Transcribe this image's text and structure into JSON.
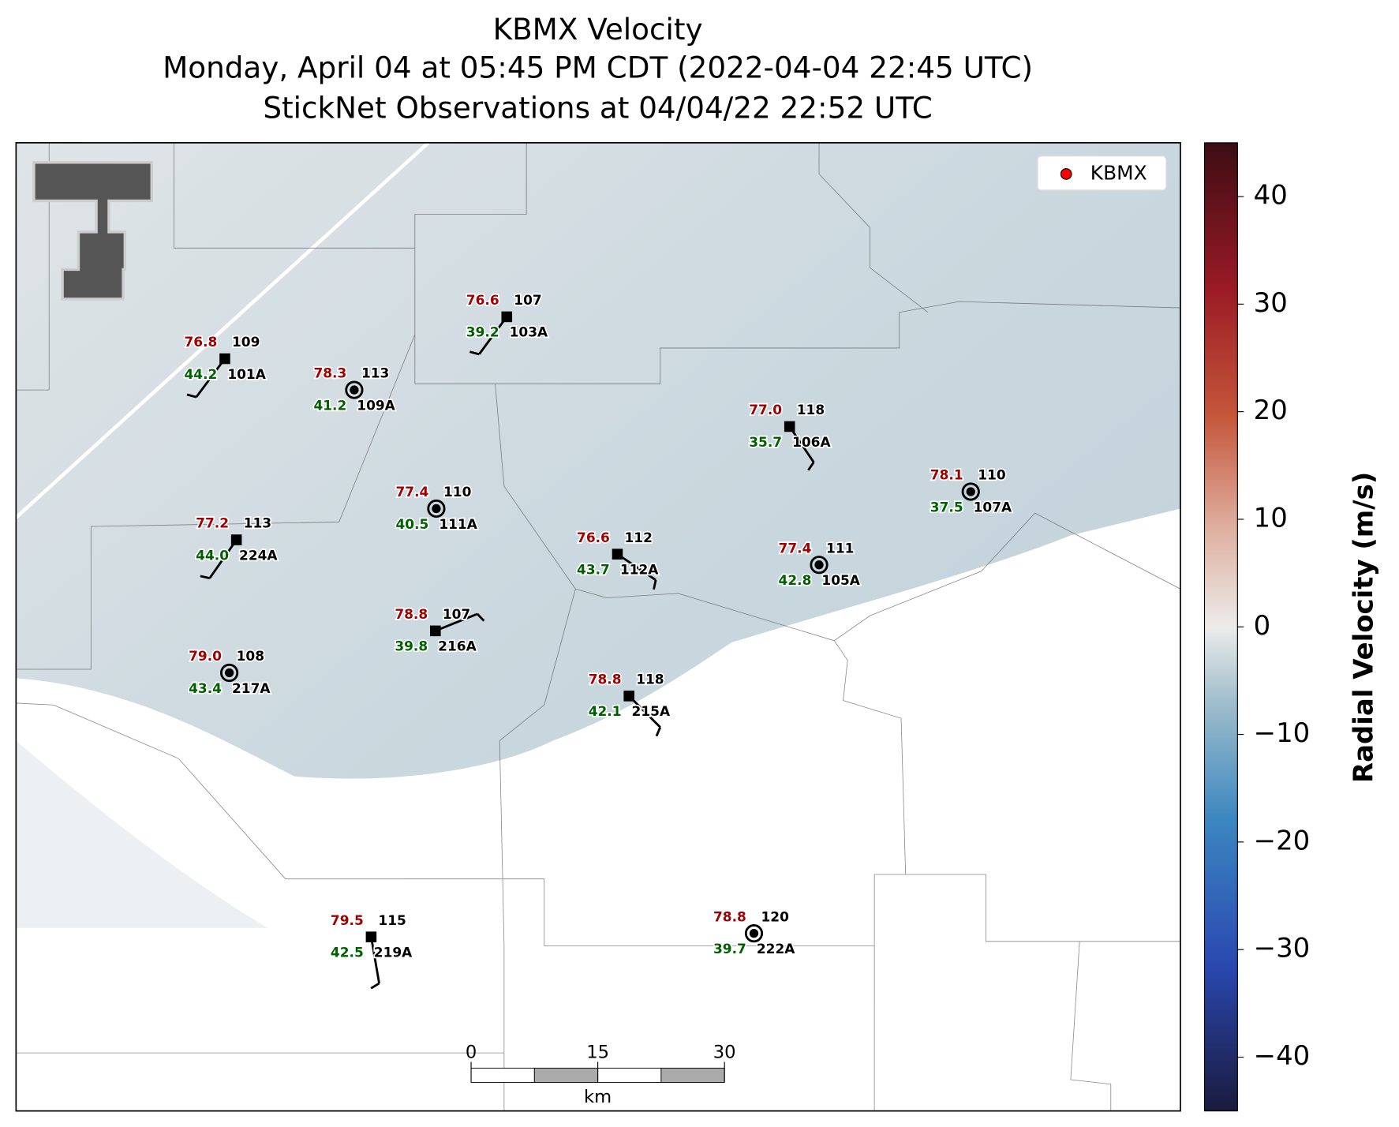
{
  "header": {
    "title_lines": [
      "KBMX Velocity",
      "Monday, April 04 at 05:45 PM CDT (2022-04-04 22:45 UTC)",
      "StickNet Observations at 04/04/22 22:52 UTC"
    ]
  },
  "legend": {
    "label": "KBMX",
    "color": "#ff0000"
  },
  "colorbar": {
    "label": "Radial Velocity (m/s)",
    "lim": [
      -45,
      45
    ],
    "ticks": [
      {
        "value": -40,
        "label": "−40"
      },
      {
        "value": -30,
        "label": "−30"
      },
      {
        "value": -20,
        "label": "−20"
      },
      {
        "value": -10,
        "label": "−10"
      },
      0,
      10,
      20,
      30,
      40
    ]
  },
  "scale_bar": {
    "lim": [
      0,
      30
    ],
    "ticks": [
      0,
      15,
      30
    ],
    "unit": "km"
  },
  "stations": [
    {
      "id": "101A",
      "number": 109,
      "temperature": "76.8",
      "dewpoint": "44.2",
      "marker": "square"
    },
    {
      "id": "109A",
      "number": 113,
      "temperature": "78.3",
      "dewpoint": "41.2",
      "marker": "circle"
    },
    {
      "id": "103A",
      "number": 107,
      "temperature": "76.6",
      "dewpoint": "39.2",
      "marker": "square"
    },
    {
      "id": "106A",
      "number": 118,
      "temperature": "77.0",
      "dewpoint": "35.7",
      "marker": "square"
    },
    {
      "id": "107A",
      "number": 110,
      "temperature": "78.1",
      "dewpoint": "37.5",
      "marker": "circle"
    },
    {
      "id": "111A",
      "number": 110,
      "temperature": "77.4",
      "dewpoint": "40.5",
      "marker": "circle"
    },
    {
      "id": "224A",
      "number": 113,
      "temperature": "77.2",
      "dewpoint": "44.0",
      "marker": "square"
    },
    {
      "id": "112A",
      "number": 112,
      "temperature": "76.6",
      "dewpoint": "43.7",
      "marker": "square"
    },
    {
      "id": "105A",
      "number": 111,
      "temperature": "77.4",
      "dewpoint": "42.8",
      "marker": "circle"
    },
    {
      "id": "216A",
      "number": 107,
      "temperature": "78.8",
      "dewpoint": "39.8",
      "marker": "square"
    },
    {
      "id": "217A",
      "number": 108,
      "temperature": "79.0",
      "dewpoint": "43.4",
      "marker": "circle"
    },
    {
      "id": "215A",
      "number": 118,
      "temperature": "78.8",
      "dewpoint": "42.1",
      "marker": "square"
    },
    {
      "id": "219A",
      "number": 115,
      "temperature": "79.5",
      "dewpoint": "42.5",
      "marker": "square"
    },
    {
      "id": "222A",
      "number": 120,
      "temperature": "78.8",
      "dewpoint": "39.7",
      "marker": "circle"
    }
  ]
}
